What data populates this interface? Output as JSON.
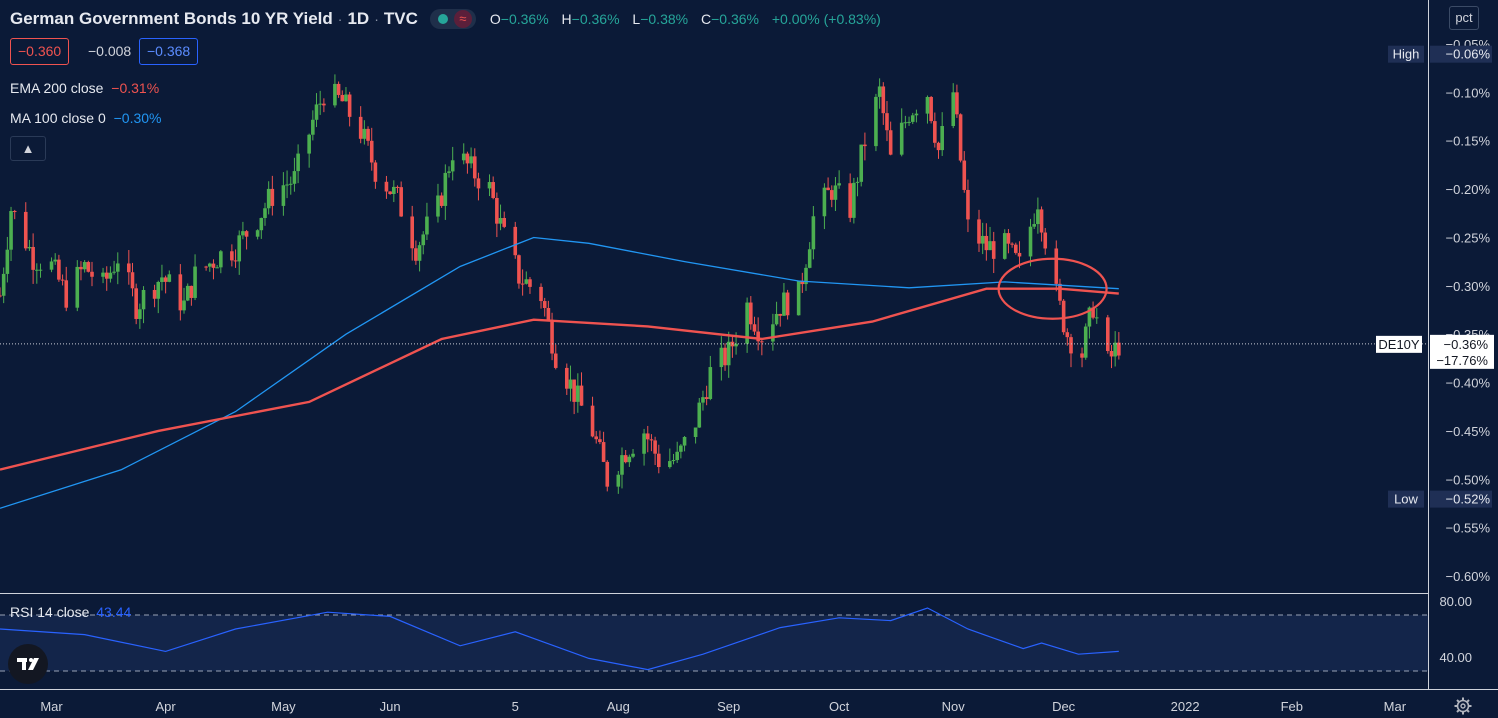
{
  "header": {
    "title": "German Government Bonds 10 YR Yield",
    "timeframe": "1D",
    "source": "TVC",
    "ohlc": [
      {
        "key": "O",
        "value": "−0.36%"
      },
      {
        "key": "H",
        "value": "−0.36%"
      },
      {
        "key": "L",
        "value": "−0.38%"
      },
      {
        "key": "C",
        "value": "−0.36%"
      }
    ],
    "change": "+0.00% (+0.83%)",
    "sell_price": "−0.360",
    "spread": "−0.008",
    "buy_price": "−0.368"
  },
  "indicators": {
    "ema_label": "EMA 200 close",
    "ema_value": "−0.31%",
    "ma_label": "MA 100 close 0",
    "ma_value": "−0.30%",
    "rsi_label": "RSI 14 close",
    "rsi_value": "43.44"
  },
  "axis_unit_button": "pct",
  "price_axis": {
    "ticks": [
      "−0.05%",
      "−0.10%",
      "−0.15%",
      "−0.20%",
      "−0.25%",
      "−0.30%",
      "−0.35%",
      "−0.40%",
      "−0.45%",
      "−0.50%",
      "−0.55%",
      "−0.60%"
    ],
    "high_label": "High",
    "high_value": "−0.06%",
    "low_label": "Low",
    "low_value": "−0.52%",
    "symbol_label": "DE10Y",
    "last_value": "−0.36%",
    "last_change": "−17.76%"
  },
  "rsi_axis": {
    "ticks": [
      "80.00",
      "40.00"
    ]
  },
  "time_axis": [
    "Mar",
    "Apr",
    "May",
    "Jun",
    "5",
    "Aug",
    "Sep",
    "Oct",
    "Nov",
    "Dec",
    "2022",
    "Feb",
    "Mar"
  ],
  "colors": {
    "background": "#0b1a37",
    "up": "#26a69a",
    "candle_up": "#4caf50",
    "down": "#ef5350",
    "ma": "#2196f3",
    "ema": "#ef5350",
    "rsi": "#2962ff"
  },
  "chart_data": {
    "type": "candlestick",
    "title": "German Government Bonds 10 YR Yield",
    "y_unit": "%",
    "ylim": [
      -0.605,
      -0.04
    ],
    "x_range": [
      "2021-02-15",
      "2022-03-10"
    ],
    "highs_lows": {
      "high": -0.06,
      "low": -0.52
    },
    "close_path": [
      [
        "2021-02-15",
        -0.31
      ],
      [
        "2021-02-18",
        -0.22
      ],
      [
        "2021-02-24",
        -0.27
      ],
      [
        "2021-03-01",
        -0.28
      ],
      [
        "2021-03-05",
        -0.31
      ],
      [
        "2021-03-10",
        -0.28
      ],
      [
        "2021-03-15",
        -0.3
      ],
      [
        "2021-03-19",
        -0.27
      ],
      [
        "2021-03-24",
        -0.32
      ],
      [
        "2021-03-31",
        -0.29
      ],
      [
        "2021-04-06",
        -0.32
      ],
      [
        "2021-04-09",
        -0.29
      ],
      [
        "2021-04-15",
        -0.27
      ],
      [
        "2021-04-20",
        -0.26
      ],
      [
        "2021-04-26",
        -0.23
      ],
      [
        "2021-05-01",
        -0.2
      ],
      [
        "2021-05-06",
        -0.19
      ],
      [
        "2021-05-11",
        -0.13
      ],
      [
        "2021-05-14",
        -0.1
      ],
      [
        "2021-05-19",
        -0.11
      ],
      [
        "2021-05-24",
        -0.14
      ],
      [
        "2021-05-28",
        -0.18
      ],
      [
        "2021-06-03",
        -0.21
      ],
      [
        "2021-06-08",
        -0.26
      ],
      [
        "2021-06-14",
        -0.22
      ],
      [
        "2021-06-18",
        -0.16
      ],
      [
        "2021-06-23",
        -0.18
      ],
      [
        "2021-06-28",
        -0.2
      ],
      [
        "2021-07-02",
        -0.25
      ],
      [
        "2021-07-06",
        -0.29
      ],
      [
        "2021-07-12",
        -0.31
      ],
      [
        "2021-07-16",
        -0.37
      ],
      [
        "2021-07-21",
        -0.41
      ],
      [
        "2021-07-26",
        -0.45
      ],
      [
        "2021-07-30",
        -0.5
      ],
      [
        "2021-08-04",
        -0.47
      ],
      [
        "2021-08-09",
        -0.45
      ],
      [
        "2021-08-13",
        -0.48
      ],
      [
        "2021-08-18",
        -0.48
      ],
      [
        "2021-08-23",
        -0.44
      ],
      [
        "2021-08-27",
        -0.39
      ],
      [
        "2021-09-01",
        -0.37
      ],
      [
        "2021-09-06",
        -0.32
      ],
      [
        "2021-09-10",
        -0.35
      ],
      [
        "2021-09-15",
        -0.32
      ],
      [
        "2021-09-20",
        -0.31
      ],
      [
        "2021-09-24",
        -0.23
      ],
      [
        "2021-09-29",
        -0.2
      ],
      [
        "2021-10-04",
        -0.22
      ],
      [
        "2021-10-08",
        -0.15
      ],
      [
        "2021-10-12",
        -0.1
      ],
      [
        "2021-10-15",
        -0.17
      ],
      [
        "2021-10-20",
        -0.12
      ],
      [
        "2021-10-25",
        -0.1
      ],
      [
        "2021-10-28",
        -0.16
      ],
      [
        "2021-11-01",
        -0.1
      ],
      [
        "2021-11-05",
        -0.24
      ],
      [
        "2021-11-10",
        -0.26
      ],
      [
        "2021-11-15",
        -0.26
      ],
      [
        "2021-11-19",
        -0.28
      ],
      [
        "2021-11-24",
        -0.21
      ],
      [
        "2021-11-29",
        -0.31
      ],
      [
        "2021-12-02",
        -0.35
      ],
      [
        "2021-12-06",
        -0.37
      ],
      [
        "2021-12-09",
        -0.32
      ],
      [
        "2021-12-13",
        -0.38
      ],
      [
        "2021-12-16",
        -0.36
      ]
    ],
    "ma_100": [
      [
        "2021-02-15",
        -0.53
      ],
      [
        "2021-03-20",
        -0.49
      ],
      [
        "2021-04-20",
        -0.43
      ],
      [
        "2021-05-20",
        -0.35
      ],
      [
        "2021-06-20",
        -0.28
      ],
      [
        "2021-07-10",
        -0.25
      ],
      [
        "2021-07-25",
        -0.256
      ],
      [
        "2021-08-20",
        -0.275
      ],
      [
        "2021-09-20",
        -0.295
      ],
      [
        "2021-10-20",
        -0.302
      ],
      [
        "2021-11-15",
        -0.296
      ],
      [
        "2021-12-16",
        -0.303
      ]
    ],
    "ema_200": [
      [
        "2021-02-15",
        -0.49
      ],
      [
        "2021-03-30",
        -0.45
      ],
      [
        "2021-05-10",
        -0.42
      ],
      [
        "2021-06-15",
        -0.355
      ],
      [
        "2021-07-10",
        -0.335
      ],
      [
        "2021-08-10",
        -0.342
      ],
      [
        "2021-09-10",
        -0.355
      ],
      [
        "2021-10-10",
        -0.337
      ],
      [
        "2021-11-10",
        -0.303
      ],
      [
        "2021-11-30",
        -0.303
      ],
      [
        "2021-12-16",
        -0.308
      ]
    ],
    "rsi_14": [
      [
        "2021-02-15",
        60
      ],
      [
        "2021-03-10",
        56
      ],
      [
        "2021-04-01",
        44
      ],
      [
        "2021-04-20",
        60
      ],
      [
        "2021-05-15",
        72
      ],
      [
        "2021-06-01",
        69
      ],
      [
        "2021-06-20",
        48
      ],
      [
        "2021-07-05",
        58
      ],
      [
        "2021-07-25",
        39
      ],
      [
        "2021-08-10",
        31
      ],
      [
        "2021-08-25",
        42
      ],
      [
        "2021-09-15",
        61
      ],
      [
        "2021-10-01",
        68
      ],
      [
        "2021-10-15",
        66
      ],
      [
        "2021-10-25",
        75
      ],
      [
        "2021-11-05",
        60
      ],
      [
        "2021-11-20",
        46
      ],
      [
        "2021-11-25",
        50
      ],
      [
        "2021-12-05",
        42
      ],
      [
        "2021-12-16",
        44
      ]
    ],
    "rsi_levels": [
      70,
      30
    ],
    "annotation": "ellipse highlighting MA 100 / EMA 200 crossover near late November"
  }
}
